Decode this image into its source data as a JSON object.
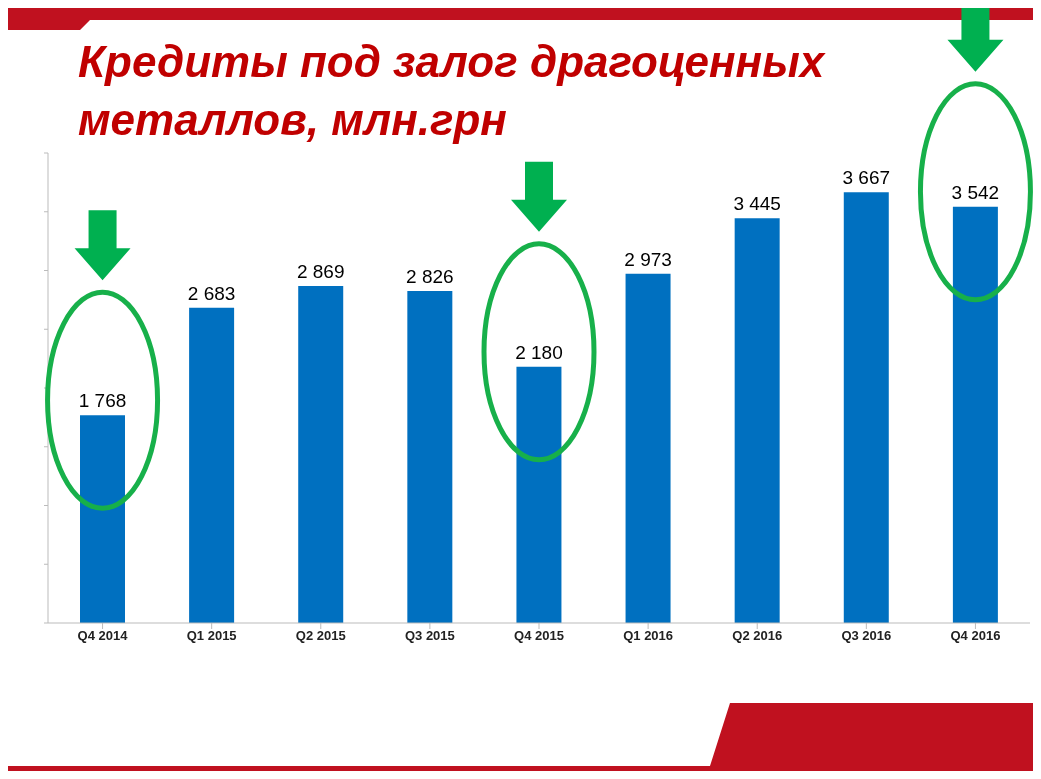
{
  "chart_data": {
    "type": "bar",
    "title": "Кредиты под залог драгоценных металлов, млн.грн",
    "categories": [
      "Q4 2014",
      "Q1 2015",
      "Q2 2015",
      "Q3 2015",
      "Q4 2015",
      "Q1 2016",
      "Q2 2016",
      "Q3 2016",
      "Q4 2016"
    ],
    "values": [
      1768,
      2683,
      2869,
      2826,
      2180,
      2973,
      3445,
      3667,
      3542
    ],
    "value_labels": [
      "1 768",
      "2 683",
      "2 869",
      "2 826",
      "2 180",
      "2 973",
      "3 445",
      "3 667",
      "3 542"
    ],
    "color": "#0070c0",
    "ylim": [
      0,
      4000
    ],
    "yticks": [
      {
        "value": 0,
        "label": null
      },
      {
        "value": 500,
        "label": null
      },
      {
        "value": 1000,
        "label": null
      },
      {
        "value": 1500,
        "label": null
      },
      {
        "value": 2000,
        "label": null
      },
      {
        "value": 2500,
        "label": null
      },
      {
        "value": 3000,
        "label": null
      },
      {
        "value": 3500,
        "label": null
      },
      {
        "value": 4000,
        "label": null
      }
    ],
    "tick_labels": "x",
    "grid": false,
    "legend": false
  }
}
